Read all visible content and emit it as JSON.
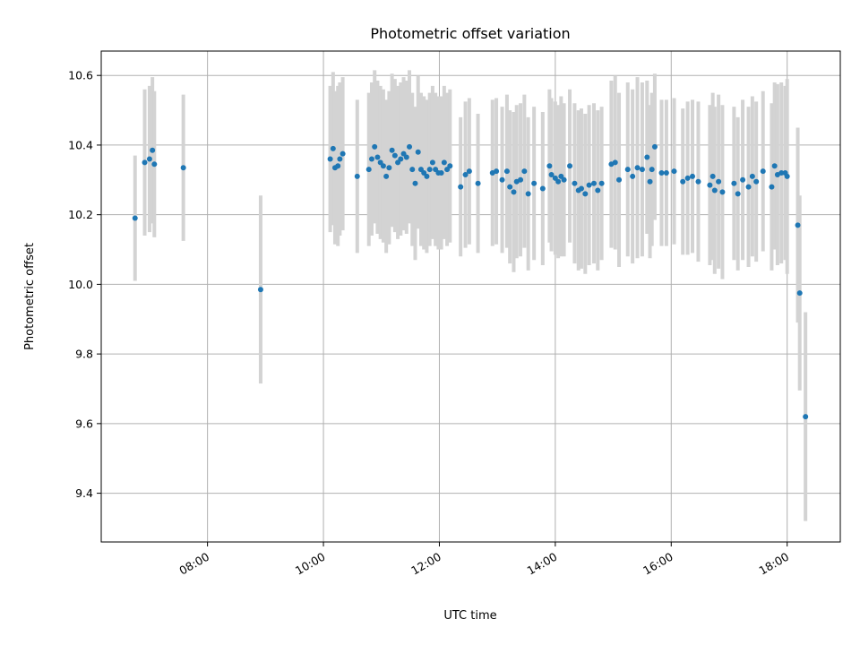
{
  "chart_data": {
    "type": "scatter",
    "title": "Photometric offset variation",
    "xlabel": "UTC time",
    "ylabel": "Photometric offset",
    "xlim": [
      "06:10",
      "18:55"
    ],
    "ylim": [
      9.26,
      10.67
    ],
    "xticks": [
      "08:00",
      "10:00",
      "12:00",
      "14:00",
      "16:00",
      "18:00"
    ],
    "yticks": [
      9.4,
      9.6,
      9.8,
      10.0,
      10.2,
      10.4,
      10.6
    ],
    "grid": true,
    "error_bar_color": "#d3d3d3",
    "marker_color": "#1f77b4",
    "series": [
      {
        "x": [
          "06:45",
          "06:55",
          "07:00",
          "07:03",
          "07:05",
          "07:35",
          "08:55",
          "10:07",
          "10:10",
          "10:12",
          "10:15",
          "10:17",
          "10:20",
          "10:35",
          "10:47",
          "10:50",
          "10:53",
          "10:56",
          "10:59",
          "11:02",
          "11:05",
          "11:08",
          "11:11",
          "11:14",
          "11:17",
          "11:20",
          "11:23",
          "11:26",
          "11:29",
          "11:32",
          "11:35",
          "11:38",
          "11:41",
          "11:44",
          "11:47",
          "11:50",
          "11:53",
          "11:56",
          "11:59",
          "12:02",
          "12:05",
          "12:08",
          "12:11",
          "12:22",
          "12:27",
          "12:31",
          "12:40",
          "12:55",
          "12:59",
          "13:05",
          "13:10",
          "13:13",
          "13:17",
          "13:20",
          "13:24",
          "13:28",
          "13:32",
          "13:38",
          "13:47",
          "13:54",
          "13:56",
          "14:00",
          "14:03",
          "14:06",
          "14:09",
          "14:15",
          "14:20",
          "14:24",
          "14:27",
          "14:31",
          "14:35",
          "14:40",
          "14:44",
          "14:48",
          "14:58",
          "15:02",
          "15:06",
          "15:15",
          "15:20",
          "15:25",
          "15:30",
          "15:35",
          "15:38",
          "15:40",
          "15:43",
          "15:50",
          "15:55",
          "16:03",
          "16:12",
          "16:17",
          "16:22",
          "16:28",
          "16:40",
          "16:43",
          "16:45",
          "16:49",
          "16:53",
          "17:05",
          "17:09",
          "17:14",
          "17:20",
          "17:24",
          "17:28",
          "17:35",
          "17:44",
          "17:47",
          "17:50",
          "17:54",
          "17:58",
          "18:00",
          "18:11",
          "18:13",
          "18:19"
        ],
        "y": [
          10.19,
          10.35,
          10.36,
          10.385,
          10.345,
          10.335,
          9.985,
          10.36,
          10.39,
          10.335,
          10.34,
          10.36,
          10.375,
          10.31,
          10.33,
          10.36,
          10.395,
          10.365,
          10.35,
          10.34,
          10.31,
          10.335,
          10.385,
          10.37,
          10.35,
          10.36,
          10.375,
          10.365,
          10.395,
          10.33,
          10.29,
          10.38,
          10.33,
          10.32,
          10.31,
          10.33,
          10.35,
          10.33,
          10.32,
          10.32,
          10.35,
          10.33,
          10.34,
          10.28,
          10.315,
          10.325,
          10.29,
          10.32,
          10.325,
          10.3,
          10.325,
          10.28,
          10.265,
          10.295,
          10.3,
          10.325,
          10.26,
          10.29,
          10.275,
          10.34,
          10.315,
          10.305,
          10.295,
          10.31,
          10.3,
          10.34,
          10.29,
          10.27,
          10.275,
          10.26,
          10.285,
          10.29,
          10.27,
          10.29,
          10.345,
          10.35,
          10.3,
          10.33,
          10.31,
          10.335,
          10.33,
          10.365,
          10.295,
          10.33,
          10.395,
          10.32,
          10.32,
          10.325,
          10.295,
          10.305,
          10.31,
          10.295,
          10.285,
          10.31,
          10.27,
          10.295,
          10.265,
          10.29,
          10.26,
          10.3,
          10.28,
          10.31,
          10.295,
          10.325,
          10.28,
          10.34,
          10.315,
          10.32,
          10.32,
          10.31,
          10.17,
          9.975,
          9.62
        ],
        "err": [
          0.18,
          0.21,
          0.21,
          0.21,
          0.21,
          0.21,
          0.27,
          0.21,
          0.22,
          0.22,
          0.23,
          0.22,
          0.22,
          0.22,
          0.22,
          0.22,
          0.22,
          0.22,
          0.22,
          0.22,
          0.22,
          0.22,
          0.22,
          0.22,
          0.22,
          0.22,
          0.22,
          0.22,
          0.22,
          0.22,
          0.22,
          0.22,
          0.22,
          0.22,
          0.22,
          0.22,
          0.22,
          0.22,
          0.22,
          0.22,
          0.22,
          0.22,
          0.22,
          0.2,
          0.21,
          0.21,
          0.2,
          0.21,
          0.21,
          0.21,
          0.22,
          0.22,
          0.23,
          0.22,
          0.22,
          0.22,
          0.22,
          0.22,
          0.22,
          0.22,
          0.22,
          0.22,
          0.22,
          0.23,
          0.22,
          0.22,
          0.23,
          0.23,
          0.23,
          0.23,
          0.23,
          0.23,
          0.23,
          0.22,
          0.24,
          0.25,
          0.25,
          0.25,
          0.25,
          0.26,
          0.25,
          0.22,
          0.22,
          0.22,
          0.21,
          0.21,
          0.21,
          0.21,
          0.21,
          0.22,
          0.22,
          0.23,
          0.23,
          0.24,
          0.24,
          0.25,
          0.25,
          0.22,
          0.22,
          0.23,
          0.23,
          0.23,
          0.23,
          0.23,
          0.24,
          0.24,
          0.26,
          0.26,
          0.25,
          0.28,
          0.28,
          0.28,
          0.3
        ]
      }
    ]
  }
}
